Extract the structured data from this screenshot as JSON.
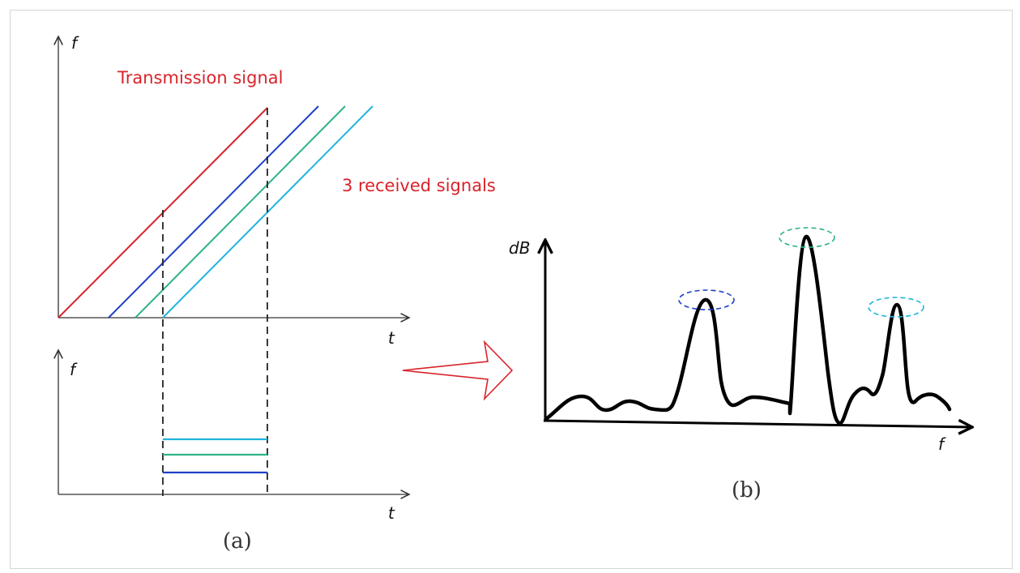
{
  "labels": {
    "axis_f_top": "f",
    "axis_t_top": "t",
    "axis_f_bottom": "f",
    "axis_t_bottom": "t",
    "axis_dB": "dB",
    "axis_f_right": "f",
    "transmission": "Transmission signal",
    "received": "3 received signals",
    "caption_a": "(a)",
    "caption_b": "(b)"
  },
  "colors": {
    "transmission": "#d8232a",
    "received_1": "#1f3fc8",
    "received_2": "#2fb38a",
    "received_3": "#22b4dc",
    "arrow": "#d8232a",
    "spectrum": "#000000",
    "axis": "#333333",
    "dashed": "#222222"
  }
}
